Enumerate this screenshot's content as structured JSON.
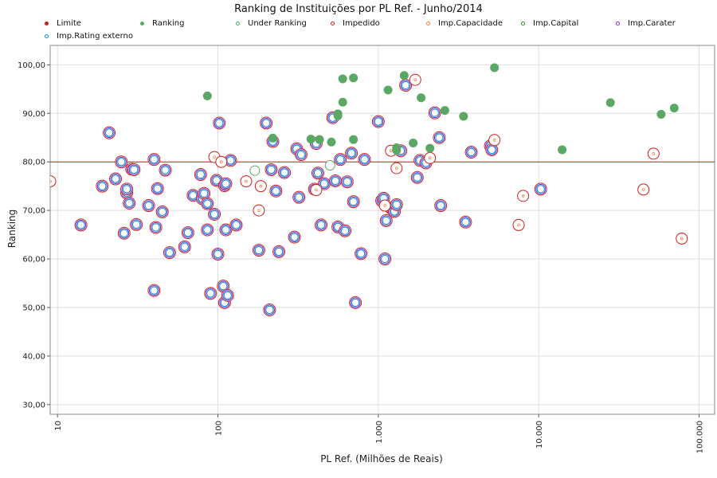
{
  "chart_data": {
    "type": "scatter",
    "title": "Ranking de Instituições por PL Ref. - Junho/2014",
    "xlabel": "PL Ref. (Milhões de Reais)",
    "ylabel": "Ranking",
    "x_scale": "log",
    "xlim": [
      9,
      125000
    ],
    "ylim": [
      28,
      104
    ],
    "x_ticks": [
      10,
      100,
      1000,
      10000,
      100000
    ],
    "x_tick_labels": [
      "10",
      "100",
      "1.000",
      "10.000",
      "100.000"
    ],
    "y_ticks": [
      30,
      40,
      50,
      60,
      70,
      80,
      90,
      100
    ],
    "y_tick_labels": [
      "30,00",
      "40,00",
      "50,00",
      "60,00",
      "70,00",
      "80,00",
      "90,00",
      "100,00"
    ],
    "grid": true,
    "limit_line": {
      "name": "Limite",
      "y": 80,
      "color": "#c81e1e"
    },
    "legend": [
      {
        "name": "Limite",
        "color": "#c81e1e",
        "style": "filled"
      },
      {
        "name": "Ranking",
        "color": "#5aa864",
        "style": "filled"
      },
      {
        "name": "Under Ranking",
        "color": "#5aa864",
        "style": "ring"
      },
      {
        "name": "Impedido",
        "color": "#d21e1e",
        "style": "ring"
      },
      {
        "name": "Imp.Capacidade",
        "color": "#f08040",
        "style": "ring"
      },
      {
        "name": "Imp.Capital",
        "color": "#2a8a2a",
        "style": "ring"
      },
      {
        "name": "Imp.Carater",
        "color": "#8a2ac8",
        "style": "ring"
      },
      {
        "name": "Imp.Rating externo",
        "color": "#1a8ac8",
        "style": "ring"
      }
    ],
    "series": [
      {
        "name": "Ranking",
        "x": [
          86,
          560,
          600,
          700,
          1150,
          1450,
          600,
          560,
          1850,
          2600,
          3400,
          5300,
          28000,
          58000,
          70000,
          14000,
          1650,
          2100,
          1300,
          380,
          430,
          700,
          220,
          510,
          1300
        ],
        "y": [
          93.6,
          89.9,
          97.1,
          97.3,
          94.8,
          97.8,
          92.3,
          89.5,
          93.2,
          90.6,
          89.4,
          99.4,
          92.2,
          89.8,
          91.1,
          82.5,
          83.9,
          82.8,
          82.9,
          84.7,
          84.6,
          84.6,
          84.9,
          84.1,
          82.4
        ]
      },
      {
        "name": "Under Ranking",
        "x": [
          170,
          500
        ],
        "y": [
          78.2,
          79.3
        ]
      },
      {
        "name": "Impedido",
        "x": [
          9,
          95,
          105,
          150,
          185,
          180,
          410,
          1200,
          1300,
          1700,
          8000,
          7500,
          45000,
          52000,
          78000,
          2100,
          5300,
          1100
        ],
        "y": [
          76,
          81,
          80,
          76,
          75,
          70,
          74.2,
          82.3,
          78.7,
          96.9,
          73,
          67,
          74.3,
          81.7,
          64.2,
          80.8,
          84.5,
          71
        ]
      },
      {
        "name": "Imp.Rating externo",
        "x": [
          14,
          19,
          21,
          23,
          25,
          26,
          27,
          27,
          28,
          29,
          30,
          31,
          37,
          40,
          40,
          41,
          42,
          45,
          47,
          50,
          62,
          65,
          70,
          78,
          80,
          82,
          86,
          86,
          90,
          95,
          98,
          100,
          102,
          108,
          110,
          110,
          112,
          112,
          115,
          120,
          130,
          180,
          200,
          210,
          215,
          220,
          230,
          240,
          260,
          300,
          310,
          320,
          330,
          400,
          410,
          420,
          440,
          460,
          520,
          540,
          560,
          580,
          620,
          640,
          680,
          700,
          720,
          780,
          820,
          1000,
          1050,
          1080,
          1100,
          1120,
          1200,
          1230,
          1260,
          1300,
          1380,
          1480,
          1750,
          1820,
          1980,
          2250,
          2400,
          2450,
          3500,
          3800,
          5000,
          5100,
          10300
        ],
        "y": [
          67,
          75,
          86,
          76.5,
          80,
          65.3,
          73.6,
          74.4,
          71.5,
          78.5,
          78.4,
          67.1,
          71,
          53.5,
          80.5,
          66.5,
          74.5,
          69.7,
          78.3,
          61.3,
          62.5,
          65.4,
          73.1,
          77.4,
          72.4,
          73.5,
          66,
          71.4,
          52.9,
          69.2,
          76.2,
          61,
          88,
          54.4,
          75.1,
          51,
          66,
          75.5,
          52.5,
          80.3,
          67,
          61.8,
          88,
          49.5,
          78.4,
          84.2,
          74,
          61.5,
          77.8,
          64.5,
          82.7,
          72.7,
          81.5,
          74.4,
          83.8,
          77.7,
          67,
          75.5,
          89.1,
          76.1,
          66.6,
          80.5,
          65.8,
          75.9,
          81.8,
          71.8,
          51,
          61.1,
          80.5,
          88.3,
          72,
          72.5,
          60,
          67.9,
          70.5,
          70.2,
          69.8,
          71.2,
          82.3,
          95.8,
          76.8,
          80.3,
          79.8,
          90.1,
          85,
          71,
          67.6,
          82,
          83.3,
          82.5,
          74.4
        ]
      }
    ]
  }
}
